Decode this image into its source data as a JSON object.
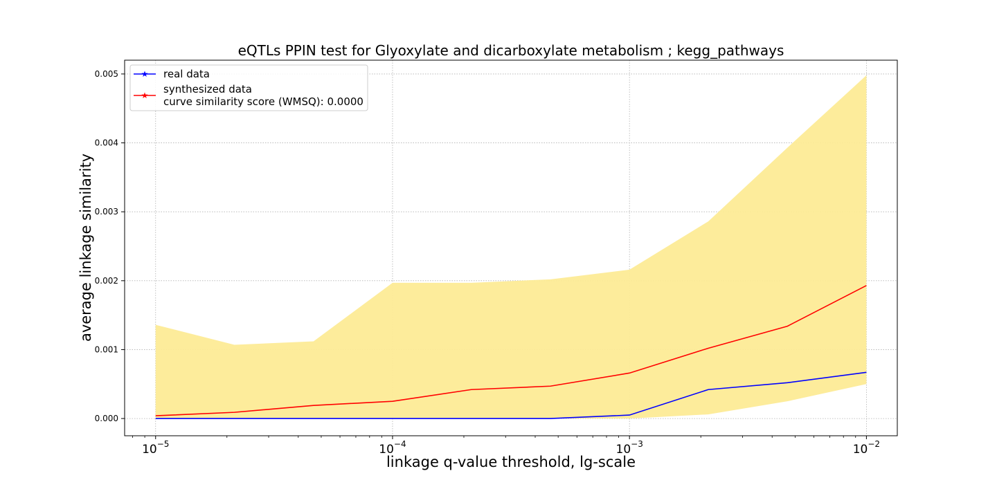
{
  "chart_data": {
    "type": "line",
    "title": "eQTLs PPIN test for Glyoxylate and dicarboxylate metabolism ; kegg_pathways",
    "xlabel": "linkage q-value threshold, lg-scale",
    "ylabel": "average linkage similarity",
    "x_scale": "log",
    "x": [
      1e-05,
      2.15e-05,
      4.64e-05,
      0.0001,
      0.000215,
      0.000464,
      0.001,
      0.00215,
      0.00464,
      0.01
    ],
    "xlim": [
      7.4e-06,
      0.0135
    ],
    "ylim": [
      -0.00025,
      0.0052
    ],
    "x_ticks": [
      {
        "value": 1e-05,
        "base": "10",
        "exp": "−5"
      },
      {
        "value": 0.0001,
        "base": "10",
        "exp": "−4"
      },
      {
        "value": 0.001,
        "base": "10",
        "exp": "−3"
      },
      {
        "value": 0.01,
        "base": "10",
        "exp": "−2"
      }
    ],
    "y_ticks": [
      {
        "value": 0.0,
        "label": "0.000"
      },
      {
        "value": 0.001,
        "label": "0.001"
      },
      {
        "value": 0.002,
        "label": "0.002"
      },
      {
        "value": 0.003,
        "label": "0.003"
      },
      {
        "value": 0.004,
        "label": "0.004"
      },
      {
        "value": 0.005,
        "label": "0.005"
      }
    ],
    "grid": true,
    "legend_position": "top-left",
    "series": [
      {
        "name": "real data",
        "color": "#0000ff",
        "values": [
          0.0,
          0.0,
          0.0,
          0.0,
          0.0,
          0.0,
          5e-05,
          0.00042,
          0.00052,
          0.00067
        ]
      },
      {
        "name": "synthesized data",
        "legend_extra": "curve similarity score (WMSQ): 0.0000",
        "color": "#ff0000",
        "values": [
          4e-05,
          9e-05,
          0.00019,
          0.00025,
          0.00042,
          0.00047,
          0.00066,
          0.00102,
          0.00134,
          0.00193
        ]
      }
    ],
    "band": {
      "color": "#fdeb96",
      "upper": [
        0.00136,
        0.00107,
        0.00112,
        0.00197,
        0.00197,
        0.00202,
        0.00216,
        0.00286,
        0.00393,
        0.00498
      ],
      "lower": [
        0.0,
        0.0,
        0.0,
        0.0,
        0.0,
        0.0,
        0.0,
        6e-05,
        0.00025,
        0.0005
      ]
    }
  }
}
